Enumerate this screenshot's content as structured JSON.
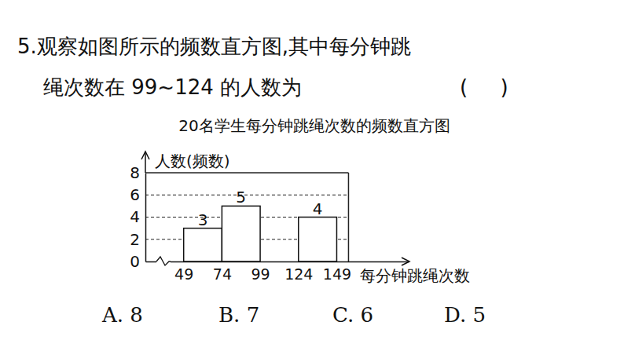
{
  "question": [
    "5.观察如图所示的频数直方图,其中每分钟跳",
    "绳次数在 99~124 的人数为"
  ],
  "answer_blank": "(     )",
  "options": [
    "A. 8",
    "B. 7",
    "C. 6",
    "D. 5"
  ],
  "chart_data": {
    "type": "histogram",
    "title": "20名学生每分钟跳绳次数的频数直方图",
    "x_label": "每分钟跳绳次数",
    "y_label": "人数(频数)",
    "bins": [
      49,
      74,
      99,
      124,
      149
    ],
    "values": [
      3,
      5,
      null,
      4
    ],
    "color": "#ffffff",
    "data_labels": true,
    "grid": true,
    "xlim": [
      24,
      196
    ],
    "xticks": [
      49,
      74,
      99,
      124,
      149
    ],
    "ylim": [
      0,
      8
    ],
    "yticks": [
      0,
      2,
      4,
      6,
      8
    ]
  }
}
